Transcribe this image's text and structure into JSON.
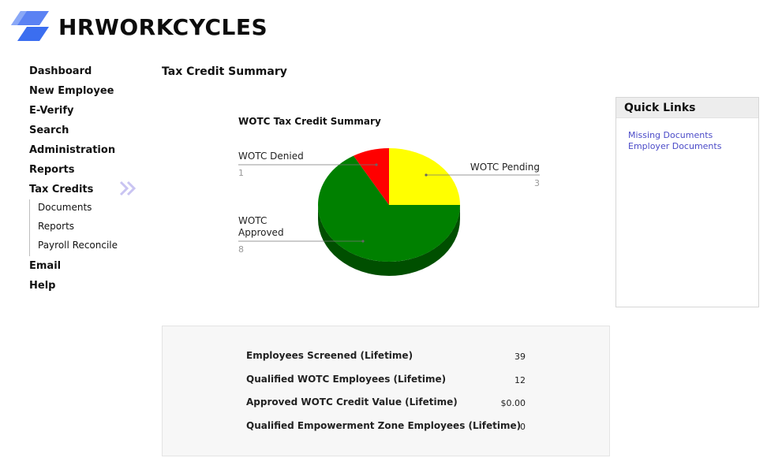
{
  "brand": {
    "name": "HRWORKCYCLES",
    "accent": "#3b6ef0"
  },
  "nav": {
    "items": [
      {
        "label": "Dashboard"
      },
      {
        "label": "New Employee"
      },
      {
        "label": "E-Verify"
      },
      {
        "label": "Search"
      },
      {
        "label": "Administration"
      },
      {
        "label": "Reports"
      },
      {
        "label": "Tax Credits"
      }
    ],
    "sub_items": [
      {
        "label": "Documents"
      },
      {
        "label": "Reports"
      },
      {
        "label": "Payroll Reconcile"
      }
    ],
    "after_items": [
      {
        "label": "Email"
      },
      {
        "label": "Help"
      }
    ],
    "active_icon": "double-chevron-right-icon"
  },
  "page": {
    "title": "Tax Credit Summary"
  },
  "chart_data": {
    "type": "pie",
    "title": "WOTC Tax Credit Summary",
    "slices": [
      {
        "label": "WOTC Pending",
        "value": 3,
        "value_label": "3",
        "color": "#ffff00"
      },
      {
        "label": "WOTC Approved",
        "value": 8,
        "value_label": "8",
        "color": "#008000"
      },
      {
        "label": "WOTC Denied",
        "value": 1,
        "value_label": "1",
        "color": "#ff0000"
      }
    ]
  },
  "quick_links": {
    "title": "Quick Links",
    "links": [
      {
        "label": "Missing Documents"
      },
      {
        "label": "Employer Documents"
      }
    ]
  },
  "stats": [
    {
      "label": "Employees Screened (Lifetime)",
      "value": "39"
    },
    {
      "label": "Qualified WOTC Employees (Lifetime)",
      "value": "12"
    },
    {
      "label": "Approved WOTC Credit Value (Lifetime)",
      "value": "$0.00"
    },
    {
      "label": "Qualified Empowerment Zone Employees (Lifetime)",
      "value": "0"
    }
  ]
}
